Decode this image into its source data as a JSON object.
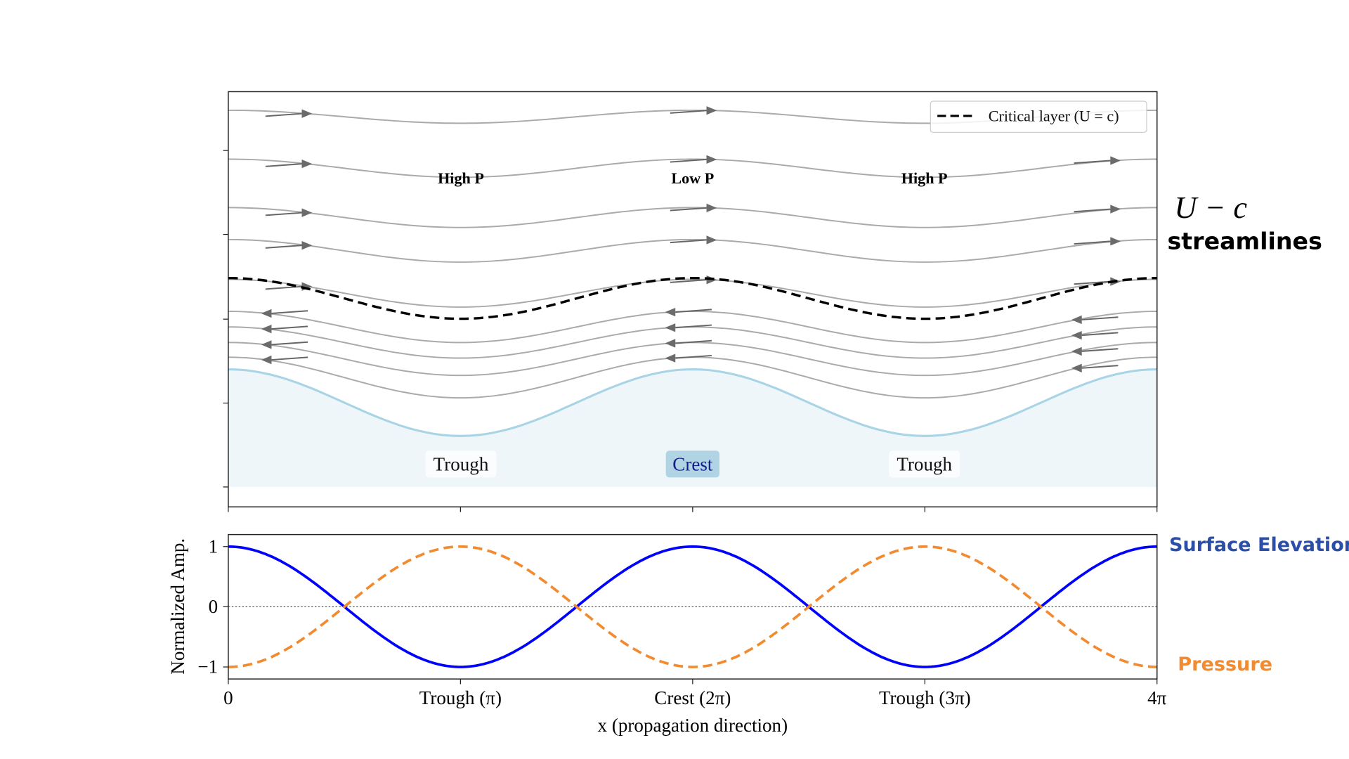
{
  "chart_data": [
    {
      "type": "line",
      "panel": "streamlines",
      "title": "",
      "xlim": [
        0,
        12.566
      ],
      "x_ticks": [
        0,
        3.1416,
        6.2832,
        9.4248,
        12.566
      ],
      "y_ticks_unlabeled": 5,
      "side_label_math": "U − c",
      "side_label_text": "streamlines",
      "legend": {
        "position": "top-right",
        "entries": [
          {
            "label": "Critical layer (U = c)",
            "style": "dashed",
            "color": "#000000"
          }
        ]
      },
      "surface": {
        "shape": "cos(x)",
        "color": "#a8d4e6",
        "fill": "#eef6fa"
      },
      "critical_layer": {
        "offset": 345,
        "amplitude": 23.5
      },
      "streamlines_above": [
        {
          "offset": 135,
          "amplitude": 7.5,
          "direction": "right"
        },
        {
          "offset": 194.5,
          "amplitude": 10.5,
          "direction": "right"
        },
        {
          "offset": 251.5,
          "amplitude": 11.5,
          "direction": "right"
        },
        {
          "offset": 290,
          "amplitude": 13,
          "direction": "right"
        },
        {
          "offset": 339,
          "amplitude": 16,
          "direction": "right"
        }
      ],
      "streamlines_below": [
        {
          "offset": 378,
          "amplitude": 18,
          "direction": "left"
        },
        {
          "offset": 396,
          "amplitude": 18,
          "direction": "left"
        },
        {
          "offset": 415,
          "amplitude": 19,
          "direction": "left"
        },
        {
          "offset": 436.5,
          "amplitude": 23.5,
          "direction": "left"
        }
      ],
      "pressure_labels": [
        "High P",
        "Low P",
        "High P"
      ],
      "surface_labels": [
        "Trough",
        "Crest",
        "Trough"
      ]
    },
    {
      "type": "line",
      "panel": "amplitude",
      "xlabel": "x (propagation direction)",
      "ylabel": "Normalized Amp.",
      "xlim": [
        0,
        12.566
      ],
      "ylim": [
        -1.2,
        1.2
      ],
      "x_tick_values": [
        0,
        3.1416,
        6.2832,
        9.4248,
        12.566
      ],
      "x_tick_labels": [
        "0",
        "Trough (π)",
        "Crest (2π)",
        "Trough (3π)",
        "4π"
      ],
      "y_tick_values": [
        1,
        0,
        -1
      ],
      "y_tick_labels": [
        "1",
        "0",
        "−1"
      ],
      "zero_line": "dotted",
      "series": [
        {
          "name": "Surface Elevation",
          "function": "cos(x)",
          "color": "#0000ff",
          "style": "solid",
          "label_color": "#2b4fa8"
        },
        {
          "name": "Pressure",
          "function": "-cos(x)",
          "color": "#f28a30",
          "style": "dashed",
          "label_color": "#f28a30"
        }
      ]
    }
  ]
}
